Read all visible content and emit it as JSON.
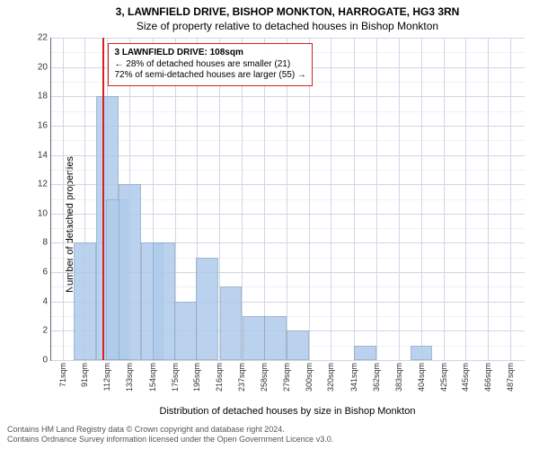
{
  "chart": {
    "type": "histogram",
    "title_main": "3, LAWNFIELD DRIVE, BISHOP MONKTON, HARROGATE, HG3 3RN",
    "title_sub": "Size of property relative to detached houses in Bishop Monkton",
    "title_fontsize": 12,
    "ylabel": "Number of detached properties",
    "xlabel_caption": "Distribution of detached houses by size in Bishop Monkton",
    "label_fontsize": 11,
    "background_color": "#ffffff",
    "grid_color": "#cfd6e6",
    "grid_minor_color": "#eef0f6",
    "axis_color": "#666666",
    "bar_fill": "#aecbeb",
    "bar_alpha": 0.85,
    "marker_color": "#d92020",
    "annot_border_color": "#d92020",
    "xlim": [
      60,
      500
    ],
    "ylim": [
      0,
      22
    ],
    "ytick_step_major": 2,
    "ytick_step_minor": 1,
    "xticks": [
      71,
      91,
      112,
      133,
      154,
      175,
      195,
      216,
      237,
      258,
      279,
      300,
      320,
      341,
      362,
      383,
      404,
      425,
      445,
      466,
      487
    ],
    "bin_width_sqm": 20.8,
    "bars": [
      {
        "x": 71,
        "h": 0
      },
      {
        "x": 91,
        "h": 8
      },
      {
        "x": 112,
        "h": 18
      },
      {
        "x": 121,
        "h": 11
      },
      {
        "x": 133,
        "h": 12
      },
      {
        "x": 154,
        "h": 8
      },
      {
        "x": 165,
        "h": 8
      },
      {
        "x": 185,
        "h": 4
      },
      {
        "x": 205,
        "h": 7
      },
      {
        "x": 227,
        "h": 5
      },
      {
        "x": 248,
        "h": 3
      },
      {
        "x": 268,
        "h": 3
      },
      {
        "x": 289,
        "h": 2
      },
      {
        "x": 330,
        "h": 0
      },
      {
        "x": 352,
        "h": 1
      },
      {
        "x": 404,
        "h": 1
      }
    ],
    "marker_x": 108,
    "annotation": {
      "line1": "3 LAWNFIELD DRIVE: 108sqm",
      "line2": "← 28% of detached houses are smaller (21)",
      "line3": "72% of semi-detached houses are larger (55) →"
    }
  },
  "footer": {
    "line1": "Contains HM Land Registry data © Crown copyright and database right 2024.",
    "line2": "Contains Ordnance Survey information licensed under the Open Government Licence v3.0."
  }
}
